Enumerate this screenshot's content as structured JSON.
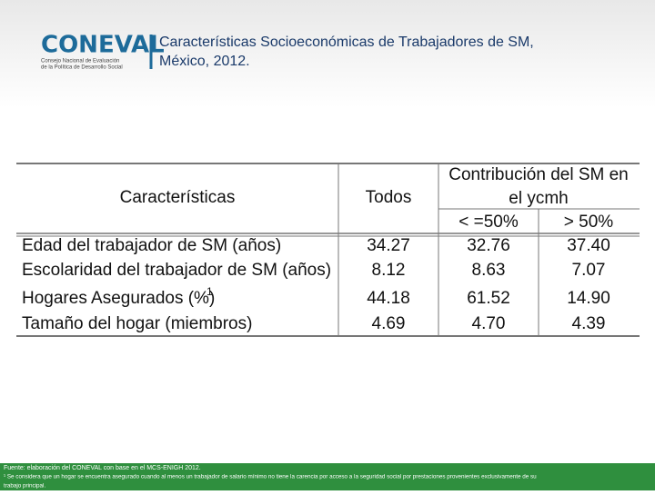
{
  "header": {
    "logo": "CONEVAL",
    "logo_subtitle_1": "Consejo Nacional de Evaluación",
    "logo_subtitle_2": "de la Política de Desarrollo Social",
    "title_line_1": "Características Socioeconómicas de Trabajadores de SM,",
    "title_line_2": "México, 2012."
  },
  "table": {
    "headers": {
      "characteristics": "Características",
      "all": "Todos",
      "contribution_line_1": "Contribución del SM en",
      "contribution_line_2": "el ycmh",
      "low": "< =50%",
      "high": "> 50%"
    },
    "rows": [
      [
        "Edad del trabajador de SM (años)",
        "34.27",
        "32.76",
        "37.40"
      ],
      [
        "Escolaridad del trabajador de SM (años)",
        "8.12",
        "8.63",
        "7.07"
      ],
      [
        "Hogares Asegurados (%)",
        "44.18",
        "61.52",
        "14.90"
      ],
      [
        "Tamaño del hogar (miembros)",
        "4.69",
        "4.70",
        "4.39"
      ]
    ],
    "note_marker": "1"
  },
  "footer": {
    "source": "Fuente: elaboración del CONEVAL con base en el MCS-ENIGH 2012.",
    "note_line_1": "¹ Se considera que un hogar se encuentra asegurado cuando al menos un trabajador de salario mínimo no tiene la carencia por acceso a la seguridad social por prestaciones provenientes exclusivamente de su",
    "note_line_2": "trabajo principal."
  }
}
